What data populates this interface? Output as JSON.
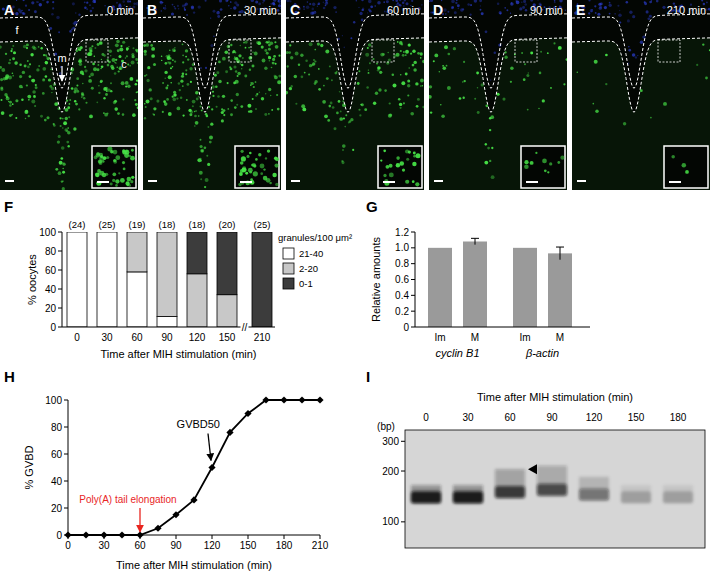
{
  "images": [
    {
      "label": "A",
      "time": "0 min",
      "annotations": [
        "f",
        "m",
        "c"
      ]
    },
    {
      "label": "B",
      "time": "30 min"
    },
    {
      "label": "C",
      "time": "60 min"
    },
    {
      "label": "D",
      "time": "90 min"
    },
    {
      "label": "E",
      "time": "210 min"
    }
  ],
  "chart_data": [
    {
      "type": "bar",
      "panel_label": "F",
      "stacked": true,
      "categories": [
        "0",
        "30",
        "60",
        "90",
        "120",
        "150",
        "210"
      ],
      "series": [
        {
          "name": "21-40",
          "color": "#ffffff",
          "values": [
            100,
            100,
            58,
            11,
            0,
            0,
            0
          ]
        },
        {
          "name": "2-20",
          "color": "#c8c8c8",
          "values": [
            0,
            0,
            42,
            89,
            56,
            34,
            0
          ]
        },
        {
          "name": "0-1",
          "color": "#3c3c3c",
          "values": [
            0,
            0,
            0,
            0,
            44,
            66,
            100
          ]
        }
      ],
      "ylim": [
        0,
        100
      ],
      "yticks": [
        0,
        20,
        40,
        60,
        80,
        100
      ],
      "y_label": "% oocytes",
      "x_label": "Time after MIH stimulation (min)",
      "legend": "right",
      "legend_title": "granules/100 μm²",
      "n_labels": [
        "(24)",
        "(25)",
        "(19)",
        "(18)",
        "(18)",
        "(20)",
        "(25)"
      ],
      "axis_break": {
        "label": "//",
        "after": "150"
      }
    },
    {
      "type": "bar",
      "panel_label": "G",
      "categories": [
        "Im",
        "M",
        "Im",
        "M"
      ],
      "group_labels": [
        "cyclin B1",
        "β-actin"
      ],
      "values": [
        1,
        1.08,
        1,
        0.93
      ],
      "errors": [
        null,
        0.04,
        null,
        0.08
      ],
      "color": "#9a9a9a",
      "ylim": [
        0,
        1.2
      ],
      "yticks": [
        0,
        0.2,
        0.4,
        0.6,
        0.8,
        {
          "value": 1,
          "label": "1.0"
        },
        1.2
      ],
      "y_label": "Relative amounts"
    },
    {
      "type": "line",
      "panel_label": "H",
      "x": [
        0,
        15,
        30,
        45,
        60,
        75,
        90,
        105,
        120,
        135,
        150,
        165,
        180,
        195,
        210
      ],
      "values": [
        0,
        0,
        0,
        0,
        0,
        5,
        15,
        26,
        50,
        76,
        90,
        100,
        100,
        100,
        100
      ],
      "color": "#000000",
      "marker": "diamond",
      "xlim": [
        0,
        210
      ],
      "xticks": [
        0,
        30,
        60,
        90,
        120,
        150,
        180,
        210
      ],
      "ylim": [
        0,
        100
      ],
      "yticks": [
        0,
        20,
        40,
        60,
        80,
        100
      ],
      "y_label": "% GVBD",
      "x_label": "Time after MIH stimulation (min)",
      "annotations": [
        {
          "text": "GVBD50",
          "x": 120,
          "y": 50,
          "color": "#000000"
        },
        {
          "text": "Poly(A) tail elongation",
          "x": 60,
          "y": 0,
          "color": "#e8251f"
        }
      ]
    },
    {
      "type": "gel",
      "panel_label": "I",
      "title": "Time after MIH stimulation (min)",
      "categories": [
        "0",
        "30",
        "60",
        "90",
        "120",
        "150",
        "180"
      ],
      "values": [
        140,
        140,
        150,
        155,
        145,
        140,
        140
      ],
      "smear_top": [
        165,
        165,
        205,
        215,
        185,
        165,
        165
      ],
      "intensity": [
        1,
        1,
        0.8,
        0.7,
        0.45,
        0.22,
        0.22
      ],
      "y_label": "(bp)",
      "ylim": [
        70,
        350
      ],
      "yticks": [
        100,
        200,
        300
      ],
      "log": "y",
      "arrowhead": {
        "category": "60",
        "value": 205
      }
    }
  ]
}
